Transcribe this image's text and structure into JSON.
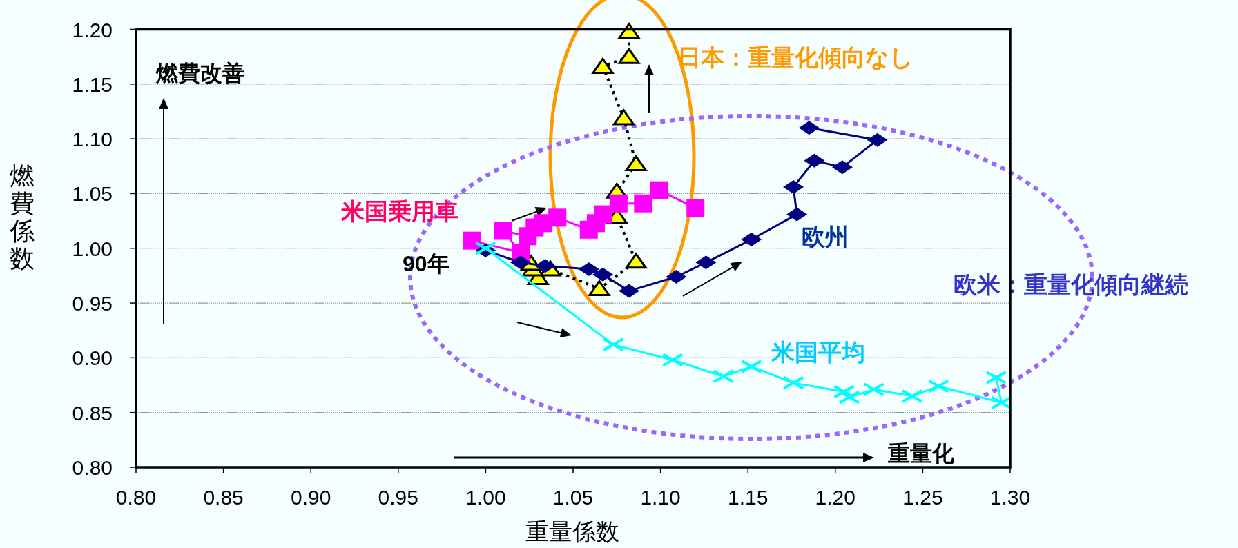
{
  "chart_data": {
    "type": "line",
    "xlabel": "重量係数",
    "ylabel": "燃費係数",
    "xlim": [
      0.8,
      1.3
    ],
    "ylim": [
      0.8,
      1.2
    ],
    "xticks": [
      {
        "value": 0.8,
        "label": "0.80"
      },
      {
        "value": 0.85,
        "label": "0.85"
      },
      {
        "value": 0.9,
        "label": "0.90"
      },
      {
        "value": 0.95,
        "label": "0.95"
      },
      {
        "value": 1.0,
        "label": "1.00"
      },
      {
        "value": 1.05,
        "label": "1.05"
      },
      {
        "value": 1.1,
        "label": "1.10"
      },
      {
        "value": 1.15,
        "label": "1.15"
      },
      {
        "value": 1.2,
        "label": "1.20"
      },
      {
        "value": 1.25,
        "label": "1.25"
      },
      {
        "value": 1.3,
        "label": "1.30"
      }
    ],
    "yticks": [
      {
        "value": 0.8,
        "label": "0.80"
      },
      {
        "value": 0.85,
        "label": "0.85"
      },
      {
        "value": 0.9,
        "label": "0.90"
      },
      {
        "value": 0.95,
        "label": "0.95"
      },
      {
        "value": 1.0,
        "label": "1.00"
      },
      {
        "value": 1.05,
        "label": "1.05"
      },
      {
        "value": 1.1,
        "label": "1.10"
      },
      {
        "value": 1.15,
        "label": "1.15"
      },
      {
        "value": 1.2,
        "label": "1.20"
      }
    ],
    "grid": "y",
    "series": [
      {
        "color": "#ffff00",
        "marker": "triangle",
        "line_style": "dotted",
        "x": [
          1.026,
          1.027,
          1.03,
          1.037,
          1.065,
          1.086,
          1.075,
          1.075,
          1.086,
          1.079,
          1.067,
          1.082,
          1.082
        ],
        "values": [
          0.986,
          0.981,
          0.973,
          0.981,
          0.963,
          0.988,
          1.029,
          1.052,
          1.077,
          1.119,
          1.166,
          1.175,
          1.198
        ]
      },
      {
        "name": "米国乗用車",
        "color": "#ff00ff",
        "marker": "square",
        "line_style": "solid",
        "x": [
          0.992,
          1.02,
          1.01,
          1.024,
          1.028,
          1.033,
          1.041,
          1.059,
          1.063,
          1.067,
          1.076,
          1.09,
          1.099,
          1.12
        ],
        "values": [
          1.007,
          0.996,
          1.016,
          1.011,
          1.019,
          1.023,
          1.028,
          1.017,
          1.023,
          1.031,
          1.041,
          1.041,
          1.053,
          1.037
        ]
      },
      {
        "name": "欧州",
        "color": "#000080",
        "marker": "diamond",
        "line_style": "solid",
        "x": [
          1.0,
          1.02,
          1.034,
          1.059,
          1.067,
          1.082,
          1.109,
          1.126,
          1.152,
          1.178,
          1.176,
          1.188,
          1.204,
          1.224,
          1.185
        ],
        "values": [
          0.998,
          0.987,
          0.984,
          0.981,
          0.976,
          0.961,
          0.974,
          0.987,
          1.008,
          1.031,
          1.056,
          1.08,
          1.074,
          1.099,
          1.11
        ]
      },
      {
        "name": "米国平均",
        "color": "#00ffff",
        "marker": "cross",
        "line_style": "solid",
        "x": [
          1.0,
          1.073,
          1.107,
          1.136,
          1.152,
          1.176,
          1.205,
          1.208,
          1.222,
          1.244,
          1.259,
          1.295,
          1.292
        ],
        "values": [
          1.0,
          0.912,
          0.898,
          0.883,
          0.892,
          0.877,
          0.869,
          0.864,
          0.871,
          0.865,
          0.874,
          0.859,
          0.882
        ]
      }
    ],
    "annotations": [
      "燃費改善",
      "重量化",
      "90年",
      "日本：重量化傾向なし",
      "欧米：重量化傾向継続"
    ]
  }
}
